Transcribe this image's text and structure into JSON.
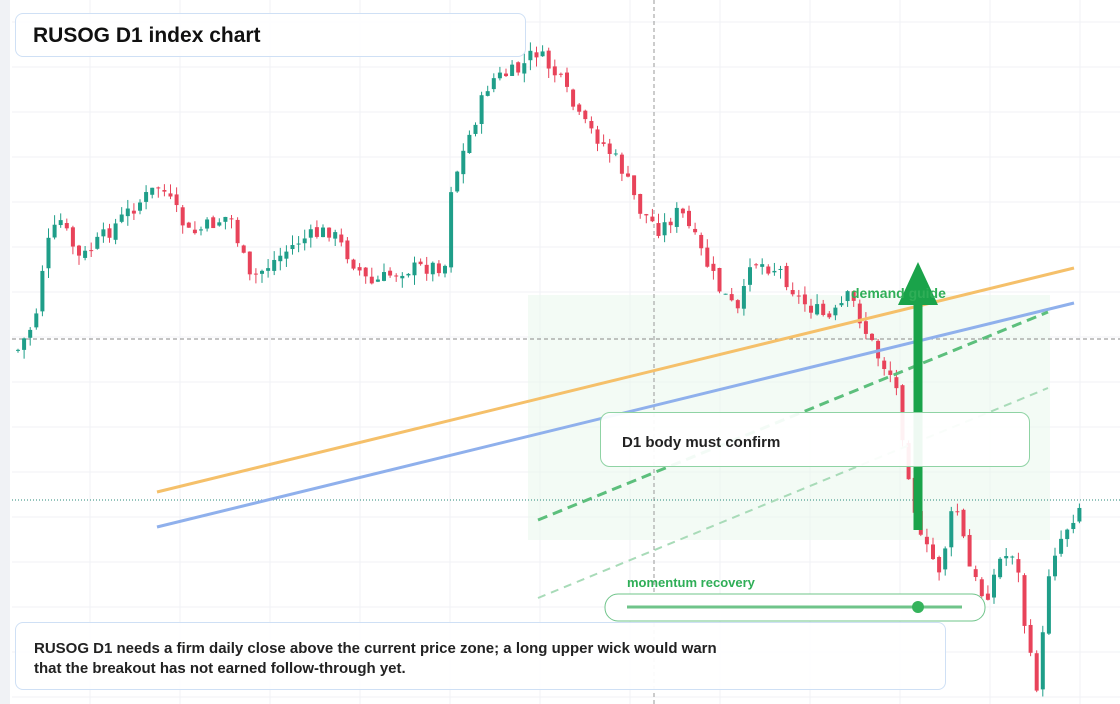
{
  "header": {
    "title": "RUSOG D1 index chart"
  },
  "annotations": {
    "zone_label": "demand guide",
    "callout": "D1 body must confirm",
    "indicator_label": "momentum recovery"
  },
  "note": {
    "text": "RUSOG D1 needs a firm daily close above the current price zone; a long upper wick would warn that the breakout has not earned follow-through yet."
  }
}
